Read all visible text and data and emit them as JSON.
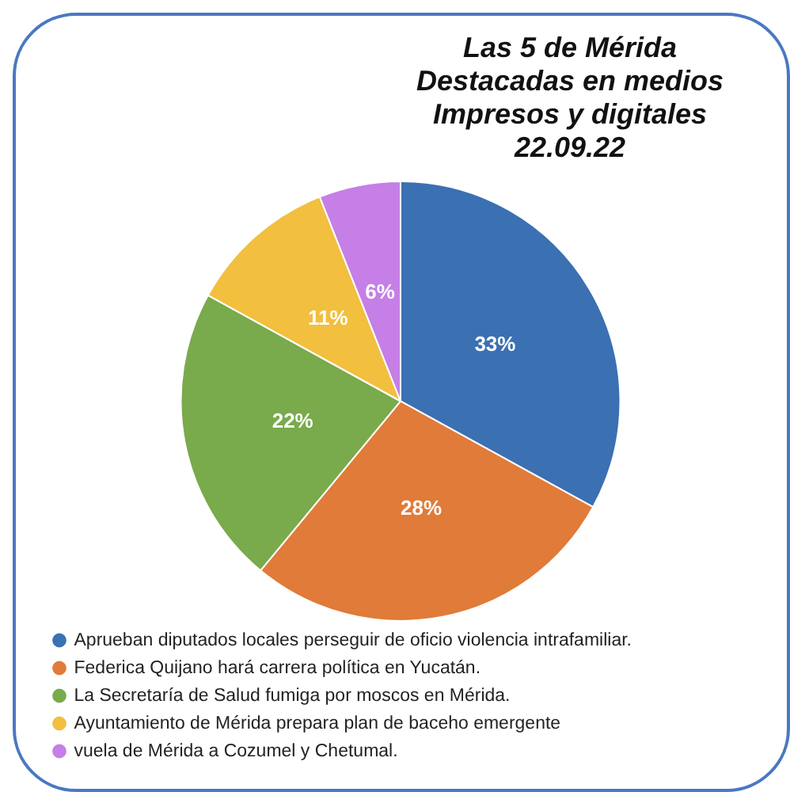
{
  "chart_data": {
    "type": "pie",
    "title": "Las 5 de Mérida Destacadas en medios Impresos y digitales 22.09.22",
    "categories": [
      "Aprueban diputados locales perseguir de oficio violencia intrafamiliar.",
      "Federica Quijano hará carrera política en Yucatán.",
      "La Secretaría de Salud fumiga por moscos en Mérida.",
      "Ayuntamiento de Mérida prepara plan de baceho emergente",
      "vuela de Mérida a Cozumel y Chetumal."
    ],
    "values": [
      33,
      28,
      22,
      11,
      6
    ],
    "value_labels": [
      "33%",
      "28%",
      "22%",
      "11%",
      "6%"
    ],
    "colors": [
      "#3b70b2",
      "#e07b39",
      "#79aa4b",
      "#f2bf3e",
      "#c57fe6"
    ],
    "legend": "bottom"
  }
}
